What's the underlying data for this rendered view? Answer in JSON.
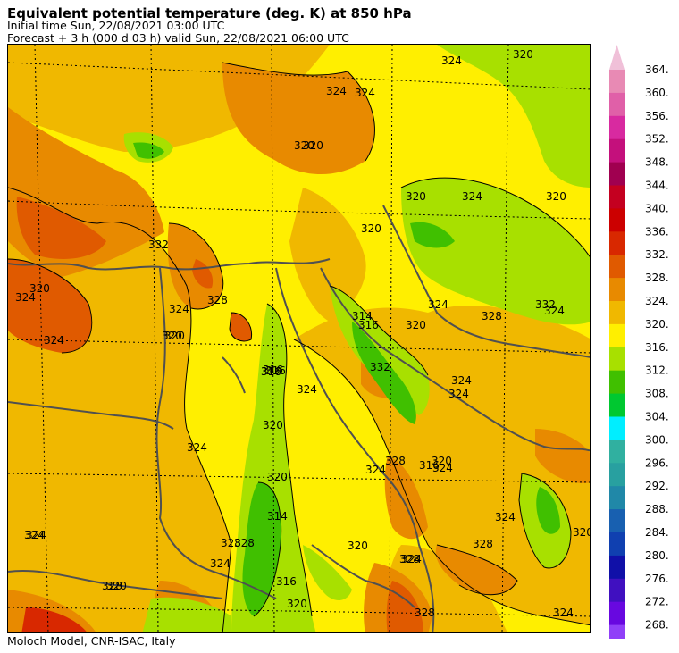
{
  "header": {
    "title": "Equivalent potential temperature (deg. K) at 850 hPa",
    "initial_time": "Initial time  Sun, 22/08/2021  03:00 UTC",
    "forecast": "Forecast  +   3 h  (000 d 03 h)  valid Sun, 22/08/2021 06:00 UTC"
  },
  "footer": "Moloch Model, CNR-ISAC, Italy",
  "colorbar": {
    "levels": [
      "364.",
      "360.",
      "356.",
      "352.",
      "348.",
      "344.",
      "340.",
      "336.",
      "332.",
      "328.",
      "324.",
      "320.",
      "316.",
      "312.",
      "308.",
      "304.",
      "300.",
      "296.",
      "292.",
      "288.",
      "284.",
      "280.",
      "276.",
      "272.",
      "268."
    ],
    "colors": [
      "#e88ab4",
      "#e060a8",
      "#d82aa0",
      "#c4107c",
      "#a00050",
      "#c40020",
      "#cc0000",
      "#d82800",
      "#e05a00",
      "#e88a00",
      "#f0b800",
      "#ffef00",
      "#a8e000",
      "#40c000",
      "#00c830",
      "#00eeff",
      "#30b0a0",
      "#28a0a0",
      "#2088a8",
      "#1860b0",
      "#1040b0",
      "#1010a8",
      "#4010c0",
      "#6808e0",
      "#9040f8"
    ],
    "top_arrow_color": "#f0c0d8",
    "bottom_arrow_color": "#c080f8"
  },
  "contour_labels": [
    "324",
    "324",
    "320",
    "324",
    "320",
    "324",
    "320",
    "316",
    "320",
    "316",
    "320",
    "324",
    "328",
    "324",
    "320",
    "332",
    "328",
    "324",
    "320",
    "316",
    "320",
    "314",
    "316",
    "314",
    "316",
    "320",
    "324",
    "320",
    "324",
    "320",
    "324",
    "332",
    "324",
    "328",
    "332",
    "324",
    "328",
    "320",
    "316",
    "324",
    "328",
    "320",
    "324",
    "324",
    "328",
    "324",
    "316",
    "320",
    "328",
    "324",
    "328",
    "324",
    "320",
    "324",
    "324",
    "320",
    "328",
    "320",
    "324"
  ],
  "palette": {
    "c316": "#a8e000",
    "c312": "#40c000",
    "c320": "#ffef00",
    "c324": "#f0b800",
    "c328": "#e88a00",
    "c332": "#e05a00",
    "c336": "#d82800",
    "border": "#505050",
    "grid": "#000000"
  }
}
